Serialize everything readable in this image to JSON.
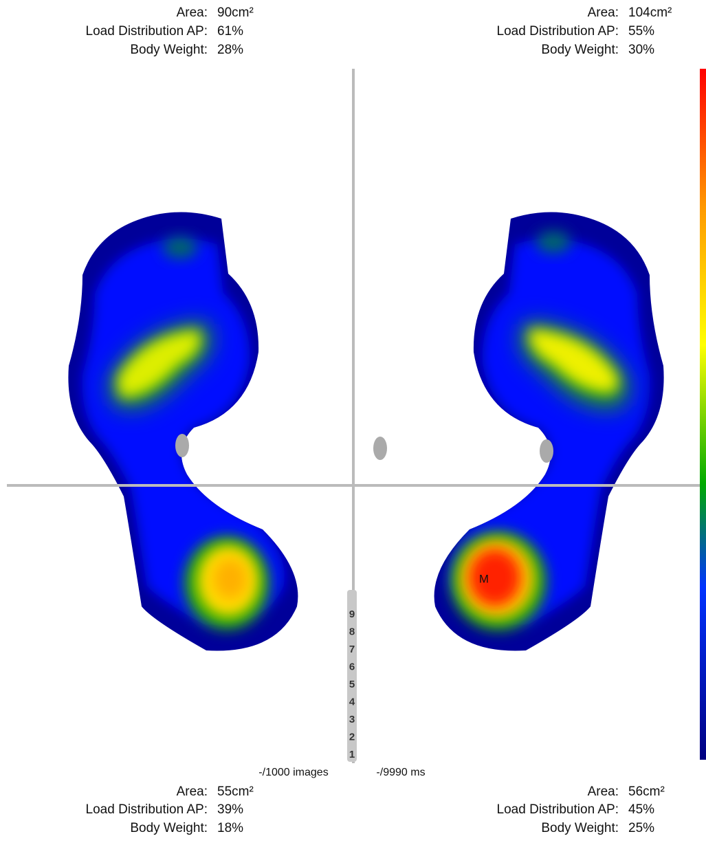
{
  "stats": {
    "top_left": [
      {
        "label": "Area:",
        "value": "90cm²"
      },
      {
        "label": "Load Distribution AP:",
        "value": "61%"
      },
      {
        "label": "Body Weight:",
        "value": "28%"
      }
    ],
    "top_right": [
      {
        "label": "Area:",
        "value": "104cm²"
      },
      {
        "label": "Load Distribution AP:",
        "value": "55%"
      },
      {
        "label": "Body Weight:",
        "value": "30%"
      }
    ],
    "bottom_left": [
      {
        "label": "Area:",
        "value": "55cm²"
      },
      {
        "label": "Load Distribution AP:",
        "value": "39%"
      },
      {
        "label": "Body Weight:",
        "value": "18%"
      }
    ],
    "bottom_right": [
      {
        "label": "Area:",
        "value": "56cm²"
      },
      {
        "label": "Load Distribution AP:",
        "value": "45%"
      },
      {
        "label": "Body Weight:",
        "value": "25%"
      }
    ]
  },
  "slider_ticks": [
    "9",
    "8",
    "7",
    "6",
    "5",
    "4",
    "3",
    "2",
    "1"
  ],
  "status": {
    "images": "-/1000 images",
    "time": "-/9990 ms"
  },
  "marker": "M"
}
